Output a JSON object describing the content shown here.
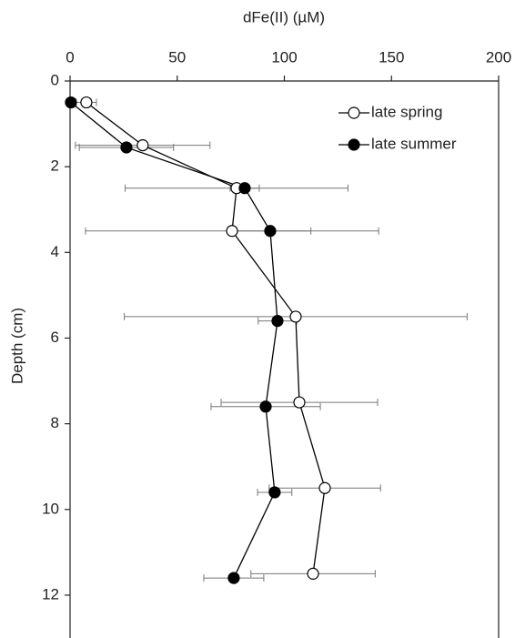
{
  "chart_data": {
    "type": "scatter-line",
    "x_label": "dFe(II) (µM)",
    "y_label": "Depth (cm)",
    "xlim": [
      0,
      200
    ],
    "xticks": [
      0,
      50,
      100,
      150,
      200
    ],
    "ylim": [
      0,
      13
    ],
    "yticks": [
      0,
      2,
      4,
      6,
      8,
      10,
      12
    ],
    "y_inverted": true,
    "x_axis_position": "top",
    "legend": "upper right",
    "series": [
      {
        "name": "late spring",
        "marker": "open",
        "color": "#000000",
        "error_color": "#777777",
        "x": [
          7.6,
          33.9,
          77.7,
          75.6,
          105.3,
          107,
          118.9,
          113.4
        ],
        "y": [
          0.5,
          1.5,
          2.5,
          3.5,
          5.5,
          7.5,
          9.5,
          11.5
        ],
        "xerr": [
          4.7,
          31.4,
          52,
          68.4,
          80,
          36.5,
          26,
          29
        ]
      },
      {
        "name": "late summer",
        "marker": "filled",
        "color": "#000000",
        "error_color": "#777777",
        "x": [
          0.4,
          26.3,
          81.5,
          93.4,
          96.8,
          91.3,
          95.5,
          76.4
        ],
        "y": [
          0.5,
          1.55,
          2.5,
          3.5,
          5.6,
          7.6,
          9.6,
          11.6
        ],
        "xerr": [
          2,
          22,
          6.8,
          19,
          9,
          25.5,
          8,
          14
        ]
      }
    ]
  }
}
